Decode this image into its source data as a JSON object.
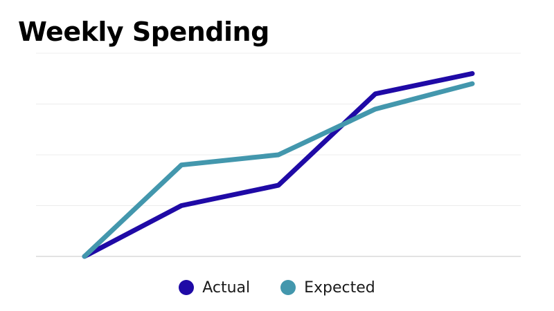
{
  "chart_data": {
    "type": "line",
    "title": "Weekly Spending",
    "xlabel": "",
    "ylabel": "",
    "x": [
      1,
      2,
      3,
      4,
      5
    ],
    "ylim": [
      0,
      4
    ],
    "grid": true,
    "legend_position": "bottom",
    "series": [
      {
        "name": "Actual",
        "color": "#1f0aa6",
        "values": [
          0,
          1.0,
          1.4,
          3.2,
          3.6
        ]
      },
      {
        "name": "Expected",
        "color": "#4397ad",
        "values": [
          0,
          1.8,
          2.0,
          2.9,
          3.4
        ]
      }
    ]
  }
}
